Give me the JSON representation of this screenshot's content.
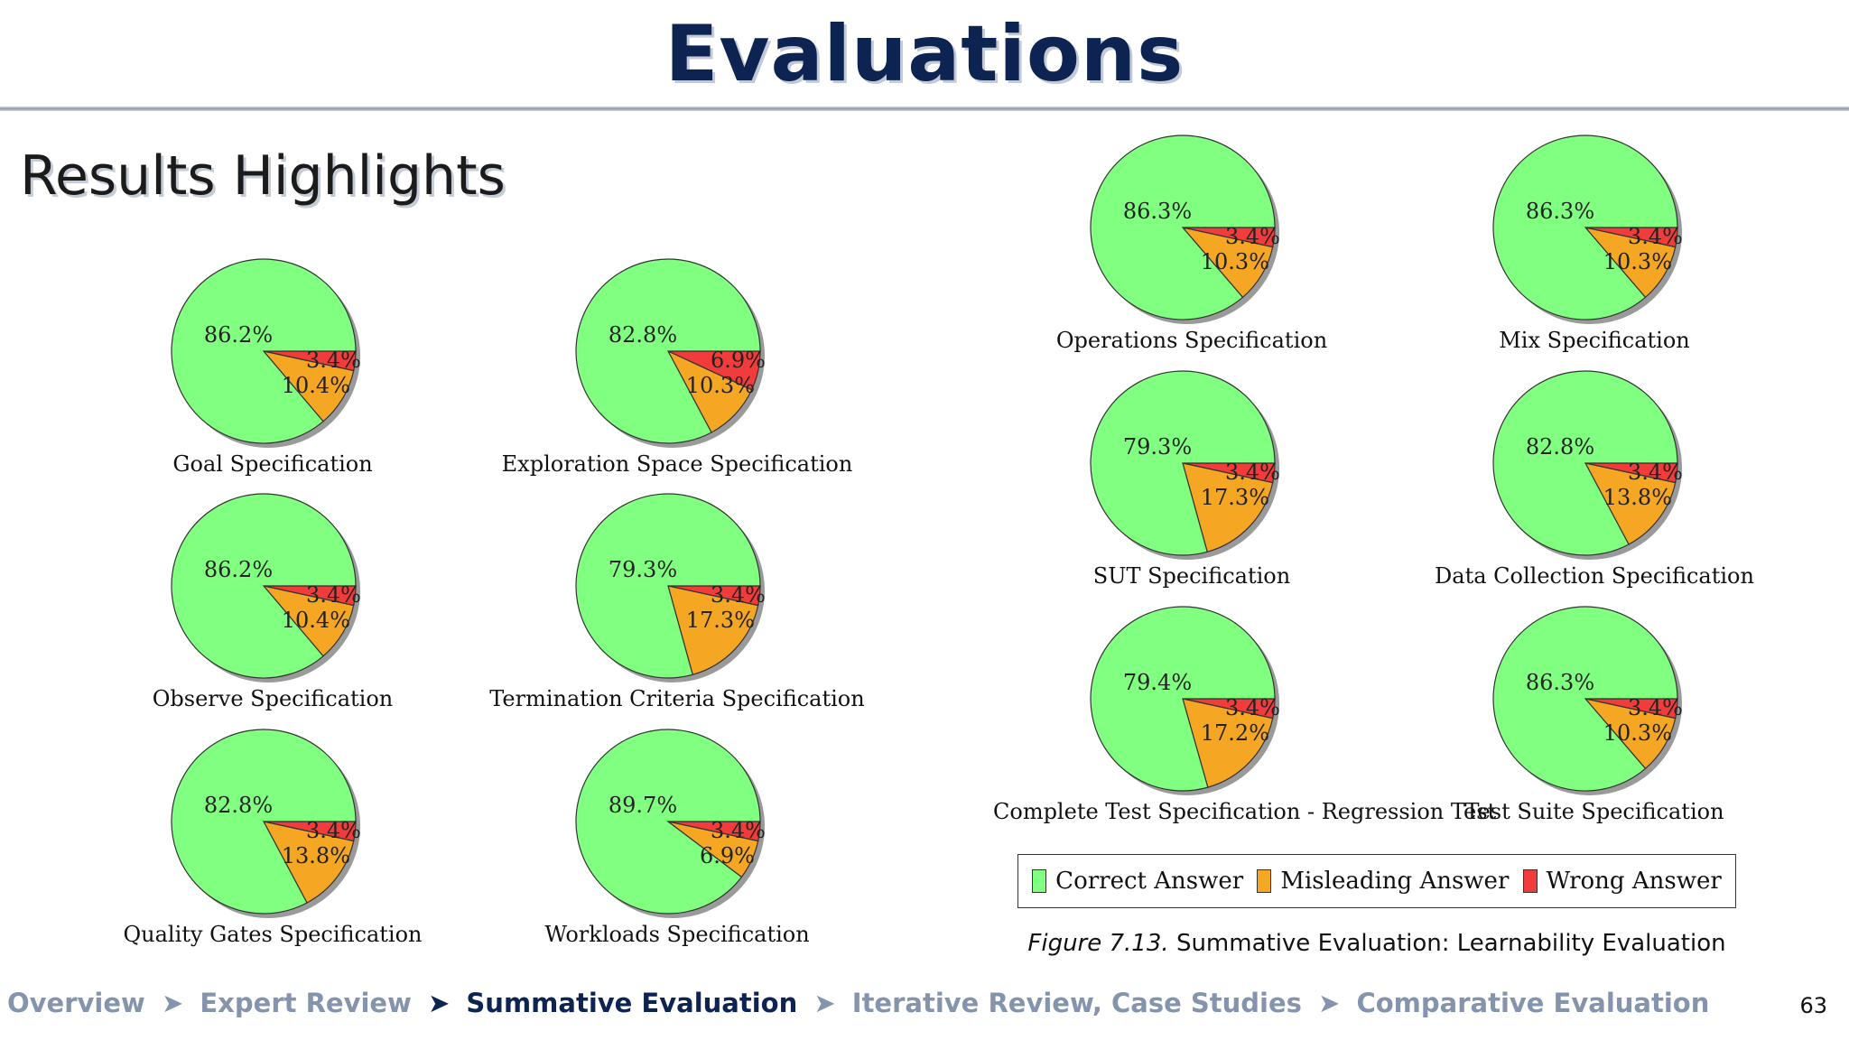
{
  "header": {
    "title": "Evaluations"
  },
  "section_heading": "Results Highlights",
  "colors": {
    "correct": "#80ff80",
    "misleading": "#f5a623",
    "wrong": "#f23c3c",
    "title": "#0d2452",
    "nav_inactive": "#8594ad"
  },
  "chart_data": [
    {
      "type": "pie",
      "title": "Goal Specification",
      "slices": [
        {
          "name": "Correct Answer",
          "value": 86.2,
          "label": "86.2%"
        },
        {
          "name": "Misleading Answer",
          "value": 10.4,
          "label": "10.4%"
        },
        {
          "name": "Wrong Answer",
          "value": 3.4,
          "label": "3.4%"
        }
      ]
    },
    {
      "type": "pie",
      "title": "Exploration Space Specification",
      "slices": [
        {
          "name": "Correct Answer",
          "value": 82.8,
          "label": "82.8%"
        },
        {
          "name": "Misleading Answer",
          "value": 10.3,
          "label": "10.3%"
        },
        {
          "name": "Wrong Answer",
          "value": 6.9,
          "label": "6.9%"
        }
      ]
    },
    {
      "type": "pie",
      "title": "Observe Specification",
      "slices": [
        {
          "name": "Correct Answer",
          "value": 86.2,
          "label": "86.2%"
        },
        {
          "name": "Misleading Answer",
          "value": 10.4,
          "label": "10.4%"
        },
        {
          "name": "Wrong Answer",
          "value": 3.4,
          "label": "3.4%"
        }
      ]
    },
    {
      "type": "pie",
      "title": "Termination Criteria Specification",
      "slices": [
        {
          "name": "Correct Answer",
          "value": 79.3,
          "label": "79.3%"
        },
        {
          "name": "Misleading Answer",
          "value": 17.3,
          "label": "17.3%"
        },
        {
          "name": "Wrong Answer",
          "value": 3.4,
          "label": "3.4%"
        }
      ]
    },
    {
      "type": "pie",
      "title": "Quality Gates Specification",
      "slices": [
        {
          "name": "Correct Answer",
          "value": 82.8,
          "label": "82.8%"
        },
        {
          "name": "Misleading Answer",
          "value": 13.8,
          "label": "13.8%"
        },
        {
          "name": "Wrong Answer",
          "value": 3.4,
          "label": "3.4%"
        }
      ]
    },
    {
      "type": "pie",
      "title": "Workloads Specification",
      "slices": [
        {
          "name": "Correct Answer",
          "value": 89.7,
          "label": "89.7%"
        },
        {
          "name": "Misleading Answer",
          "value": 6.9,
          "label": "6.9%"
        },
        {
          "name": "Wrong Answer",
          "value": 3.4,
          "label": "3.4%"
        }
      ]
    },
    {
      "type": "pie",
      "title": "Operations Specification",
      "slices": [
        {
          "name": "Correct Answer",
          "value": 86.3,
          "label": "86.3%"
        },
        {
          "name": "Misleading Answer",
          "value": 10.3,
          "label": "10.3%"
        },
        {
          "name": "Wrong Answer",
          "value": 3.4,
          "label": "3.4%"
        }
      ]
    },
    {
      "type": "pie",
      "title": "Mix Specification",
      "slices": [
        {
          "name": "Correct Answer",
          "value": 86.3,
          "label": "86.3%"
        },
        {
          "name": "Misleading Answer",
          "value": 10.3,
          "label": "10.3%"
        },
        {
          "name": "Wrong Answer",
          "value": 3.4,
          "label": "3.4%"
        }
      ]
    },
    {
      "type": "pie",
      "title": "SUT Specification",
      "slices": [
        {
          "name": "Correct Answer",
          "value": 79.3,
          "label": "79.3%"
        },
        {
          "name": "Misleading Answer",
          "value": 17.3,
          "label": "17.3%"
        },
        {
          "name": "Wrong Answer",
          "value": 3.4,
          "label": "3.4%"
        }
      ]
    },
    {
      "type": "pie",
      "title": "Data Collection Specification",
      "slices": [
        {
          "name": "Correct Answer",
          "value": 82.8,
          "label": "82.8%"
        },
        {
          "name": "Misleading Answer",
          "value": 13.8,
          "label": "13.8%"
        },
        {
          "name": "Wrong Answer",
          "value": 3.4,
          "label": "3.4%"
        }
      ]
    },
    {
      "type": "pie",
      "title": "Complete Test Specification - Regression Test",
      "slices": [
        {
          "name": "Correct Answer",
          "value": 79.4,
          "label": "79.4%"
        },
        {
          "name": "Misleading Answer",
          "value": 17.2,
          "label": "17.2%"
        },
        {
          "name": "Wrong Answer",
          "value": 3.4,
          "label": "3.4%"
        }
      ]
    },
    {
      "type": "pie",
      "title": "Test Suite Specification",
      "slices": [
        {
          "name": "Correct Answer",
          "value": 86.3,
          "label": "86.3%"
        },
        {
          "name": "Misleading Answer",
          "value": 10.3,
          "label": "10.3%"
        },
        {
          "name": "Wrong Answer",
          "value": 3.4,
          "label": "3.4%"
        }
      ]
    }
  ],
  "legend": {
    "items": [
      "Correct Answer",
      "Misleading Answer",
      "Wrong Answer"
    ]
  },
  "figure_caption": {
    "prefix": "Figure 7.13.",
    "text": "Summative Evaluation: Learnability Evaluation"
  },
  "nav": {
    "items": [
      "Overview",
      "Expert Review",
      "Summative Evaluation",
      "Iterative Review, Case Studies",
      "Comparative Evaluation"
    ],
    "active": "Summative Evaluation",
    "separator": "➤"
  },
  "page_number": "63"
}
